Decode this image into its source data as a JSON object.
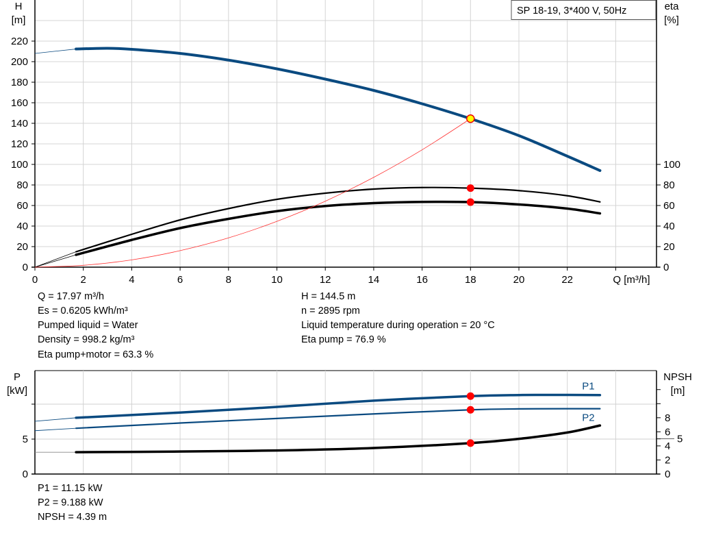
{
  "chart_data": [
    {
      "type": "line",
      "title": "SP 18-19, 3*400 V, 50Hz",
      "xlabel": "Q [m³/h]",
      "ylabel": "H\n[m]",
      "y2label": "eta\n[%]",
      "xlim": [
        0,
        25.7
      ],
      "ylim": [
        0,
        260
      ],
      "y2lim": [
        0,
        260
      ],
      "grid": true,
      "x_ticks": [
        0,
        2,
        4,
        6,
        8,
        10,
        12,
        14,
        16,
        18,
        20,
        22
      ],
      "y_ticks": [
        0,
        20,
        40,
        60,
        80,
        100,
        120,
        140,
        160,
        180,
        200,
        220
      ],
      "y2_ticks": [
        0,
        20,
        40,
        60,
        80,
        100
      ],
      "series": [
        {
          "key": "H",
          "axis": "left",
          "color": "#0a4a80",
          "x": [
            0,
            1.7,
            3,
            4,
            6,
            8,
            10,
            12,
            14,
            16,
            18,
            20,
            22,
            23.35
          ],
          "y": [
            208,
            212.3,
            213,
            212,
            208,
            201.5,
            193,
            183,
            172,
            159,
            144.5,
            128,
            108,
            94
          ]
        },
        {
          "key": "eta_pump",
          "axis": "right",
          "color": "#000000",
          "x": [
            0,
            1.7,
            4,
            6,
            8,
            10,
            12,
            14,
            16,
            18,
            20,
            22,
            23.35
          ],
          "y": [
            0,
            15,
            32,
            46,
            57,
            66,
            72,
            76,
            77.5,
            76.9,
            74.5,
            69.5,
            63.5
          ]
        },
        {
          "key": "eta_pump_motor",
          "axis": "right",
          "color": "#000000",
          "x": [
            0,
            1.7,
            4,
            6,
            8,
            10,
            12,
            14,
            16,
            18,
            20,
            22,
            23.35
          ],
          "y": [
            0,
            12,
            26.5,
            38,
            47,
            54.5,
            59.5,
            62.3,
            63.5,
            63.3,
            61,
            57,
            52.3
          ]
        },
        {
          "key": "system_curve",
          "axis": "left",
          "color": "#ff3030",
          "x": [
            0,
            2,
            4,
            6,
            8,
            10,
            12,
            14,
            16,
            18
          ],
          "y": [
            0,
            1.8,
            7.1,
            16.1,
            28.5,
            44.6,
            64.2,
            87.4,
            114.2,
            144.5
          ]
        }
      ],
      "operating_points": [
        {
          "x": 18,
          "y": 144.5,
          "axis": "left",
          "color": "#ffff00"
        },
        {
          "x": 18,
          "y": 76.9,
          "axis": "right",
          "color": "#ff0000"
        },
        {
          "x": 18,
          "y": 63.3,
          "axis": "right",
          "color": "#ff0000"
        }
      ]
    },
    {
      "type": "line",
      "ylabel": "P\n[kW]",
      "y2label": "NPSH\n[m]",
      "xlim": [
        0,
        25.7
      ],
      "ylim": [
        0,
        14.8
      ],
      "y2lim": [
        0,
        14.7
      ],
      "grid": true,
      "y_ticks": [
        0,
        5,
        10
      ],
      "y_tick_labels": [
        "0",
        "5",
        ""
      ],
      "y2_ticks": [
        0,
        2,
        4,
        5,
        6,
        8,
        10,
        12
      ],
      "y2_tick_labels": [
        "0",
        "2",
        "4",
        "5",
        "6",
        "8",
        "",
        ""
      ],
      "series": [
        {
          "key": "P1",
          "name": "P1",
          "axis": "left",
          "color": "#0a4a80",
          "x": [
            0,
            1.7,
            6,
            10,
            14,
            18,
            20,
            22,
            23.35
          ],
          "y": [
            7.55,
            8.05,
            8.8,
            9.6,
            10.5,
            11.15,
            11.3,
            11.32,
            11.3
          ]
        },
        {
          "key": "P2",
          "name": "P2",
          "axis": "left",
          "color": "#0a4a80",
          "x": [
            0,
            1.7,
            6,
            10,
            14,
            18,
            20,
            22,
            23.35
          ],
          "y": [
            6.2,
            6.55,
            7.3,
            7.95,
            8.6,
            9.19,
            9.32,
            9.35,
            9.35
          ]
        },
        {
          "key": "NPSH",
          "axis": "right",
          "color": "#000000",
          "x": [
            0,
            1.7,
            6,
            10,
            14,
            18,
            20,
            22,
            23.35
          ],
          "y": [
            3.1,
            3.1,
            3.2,
            3.35,
            3.7,
            4.39,
            5.0,
            5.9,
            6.9
          ]
        }
      ],
      "operating_points": [
        {
          "x": 18,
          "y": 11.15,
          "axis": "left",
          "color": "#ff0000"
        },
        {
          "x": 18,
          "y": 9.188,
          "axis": "left",
          "color": "#ff0000"
        },
        {
          "x": 18,
          "y": 4.39,
          "axis": "right",
          "color": "#ff0000"
        }
      ]
    }
  ],
  "info_top": {
    "left": [
      "Q = 17.97 m³/h",
      "Es = 0.6205 kWh/m³",
      "Pumped liquid = Water",
      "Density = 998.2 kg/m³",
      "Eta pump+motor = 63.3 %"
    ],
    "right": [
      "H = 144.5 m",
      "n = 2895 rpm",
      "Liquid temperature during operation = 20 °C",
      "Eta pump = 76.9 %"
    ]
  },
  "info_bottom": [
    "P1 = 11.15 kW",
    "P2 = 9.188 kW",
    "NPSH = 4.39 m"
  ]
}
